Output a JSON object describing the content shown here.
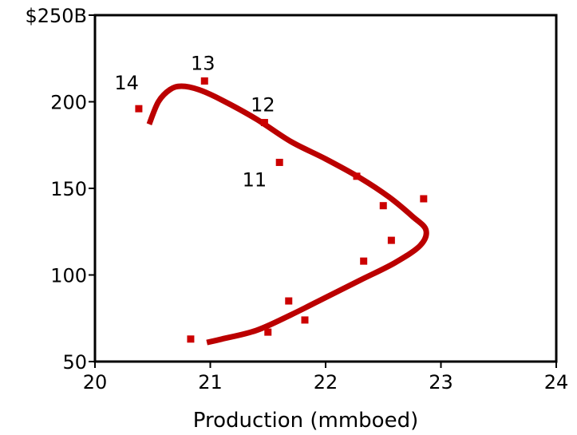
{
  "chart_data": {
    "type": "scatter",
    "title": "",
    "xlabel": "Production (mmboed)",
    "ylabel": "",
    "xlim": [
      20,
      24
    ],
    "ylim": [
      50,
      250
    ],
    "x_ticks": [
      {
        "value": 20,
        "label": "20"
      },
      {
        "value": 21,
        "label": "21"
      },
      {
        "value": 22,
        "label": "22"
      },
      {
        "value": 23,
        "label": "23"
      },
      {
        "value": 24,
        "label": "24"
      }
    ],
    "y_ticks": [
      {
        "value": 50,
        "label": "50"
      },
      {
        "value": 100,
        "label": "100"
      },
      {
        "value": 150,
        "label": "150"
      },
      {
        "value": 200,
        "label": "200"
      },
      {
        "value": 250,
        "label": "$250B"
      }
    ],
    "grid": false,
    "series": [
      {
        "kind": "points",
        "color": "#cc0000",
        "marker": "square",
        "points": [
          {
            "x": 20.38,
            "y": 196,
            "label": "14"
          },
          {
            "x": 20.95,
            "y": 212,
            "label": "13"
          },
          {
            "x": 21.47,
            "y": 188,
            "label": "12"
          },
          {
            "x": 21.6,
            "y": 165,
            "label": "11"
          },
          {
            "x": 22.27,
            "y": 157,
            "label": ""
          },
          {
            "x": 22.85,
            "y": 144,
            "label": ""
          },
          {
            "x": 22.5,
            "y": 140,
            "label": ""
          },
          {
            "x": 22.57,
            "y": 120,
            "label": ""
          },
          {
            "x": 22.33,
            "y": 108,
            "label": ""
          },
          {
            "x": 21.68,
            "y": 85,
            "label": ""
          },
          {
            "x": 21.82,
            "y": 74,
            "label": ""
          },
          {
            "x": 21.5,
            "y": 67,
            "label": ""
          },
          {
            "x": 20.83,
            "y": 63,
            "label": ""
          }
        ]
      },
      {
        "kind": "curve",
        "color": "#bb0000",
        "points": [
          {
            "x": 20.47,
            "y": 187
          },
          {
            "x": 20.55,
            "y": 200
          },
          {
            "x": 20.65,
            "y": 207
          },
          {
            "x": 20.75,
            "y": 209
          },
          {
            "x": 20.9,
            "y": 207
          },
          {
            "x": 21.1,
            "y": 201
          },
          {
            "x": 21.4,
            "y": 190
          },
          {
            "x": 21.7,
            "y": 177
          },
          {
            "x": 22.0,
            "y": 167
          },
          {
            "x": 22.3,
            "y": 156
          },
          {
            "x": 22.55,
            "y": 145
          },
          {
            "x": 22.75,
            "y": 134
          },
          {
            "x": 22.87,
            "y": 126
          },
          {
            "x": 22.82,
            "y": 117
          },
          {
            "x": 22.6,
            "y": 107
          },
          {
            "x": 22.3,
            "y": 97
          },
          {
            "x": 22.0,
            "y": 87
          },
          {
            "x": 21.7,
            "y": 77
          },
          {
            "x": 21.4,
            "y": 68
          },
          {
            "x": 21.1,
            "y": 63
          },
          {
            "x": 20.97,
            "y": 61
          }
        ]
      }
    ]
  }
}
